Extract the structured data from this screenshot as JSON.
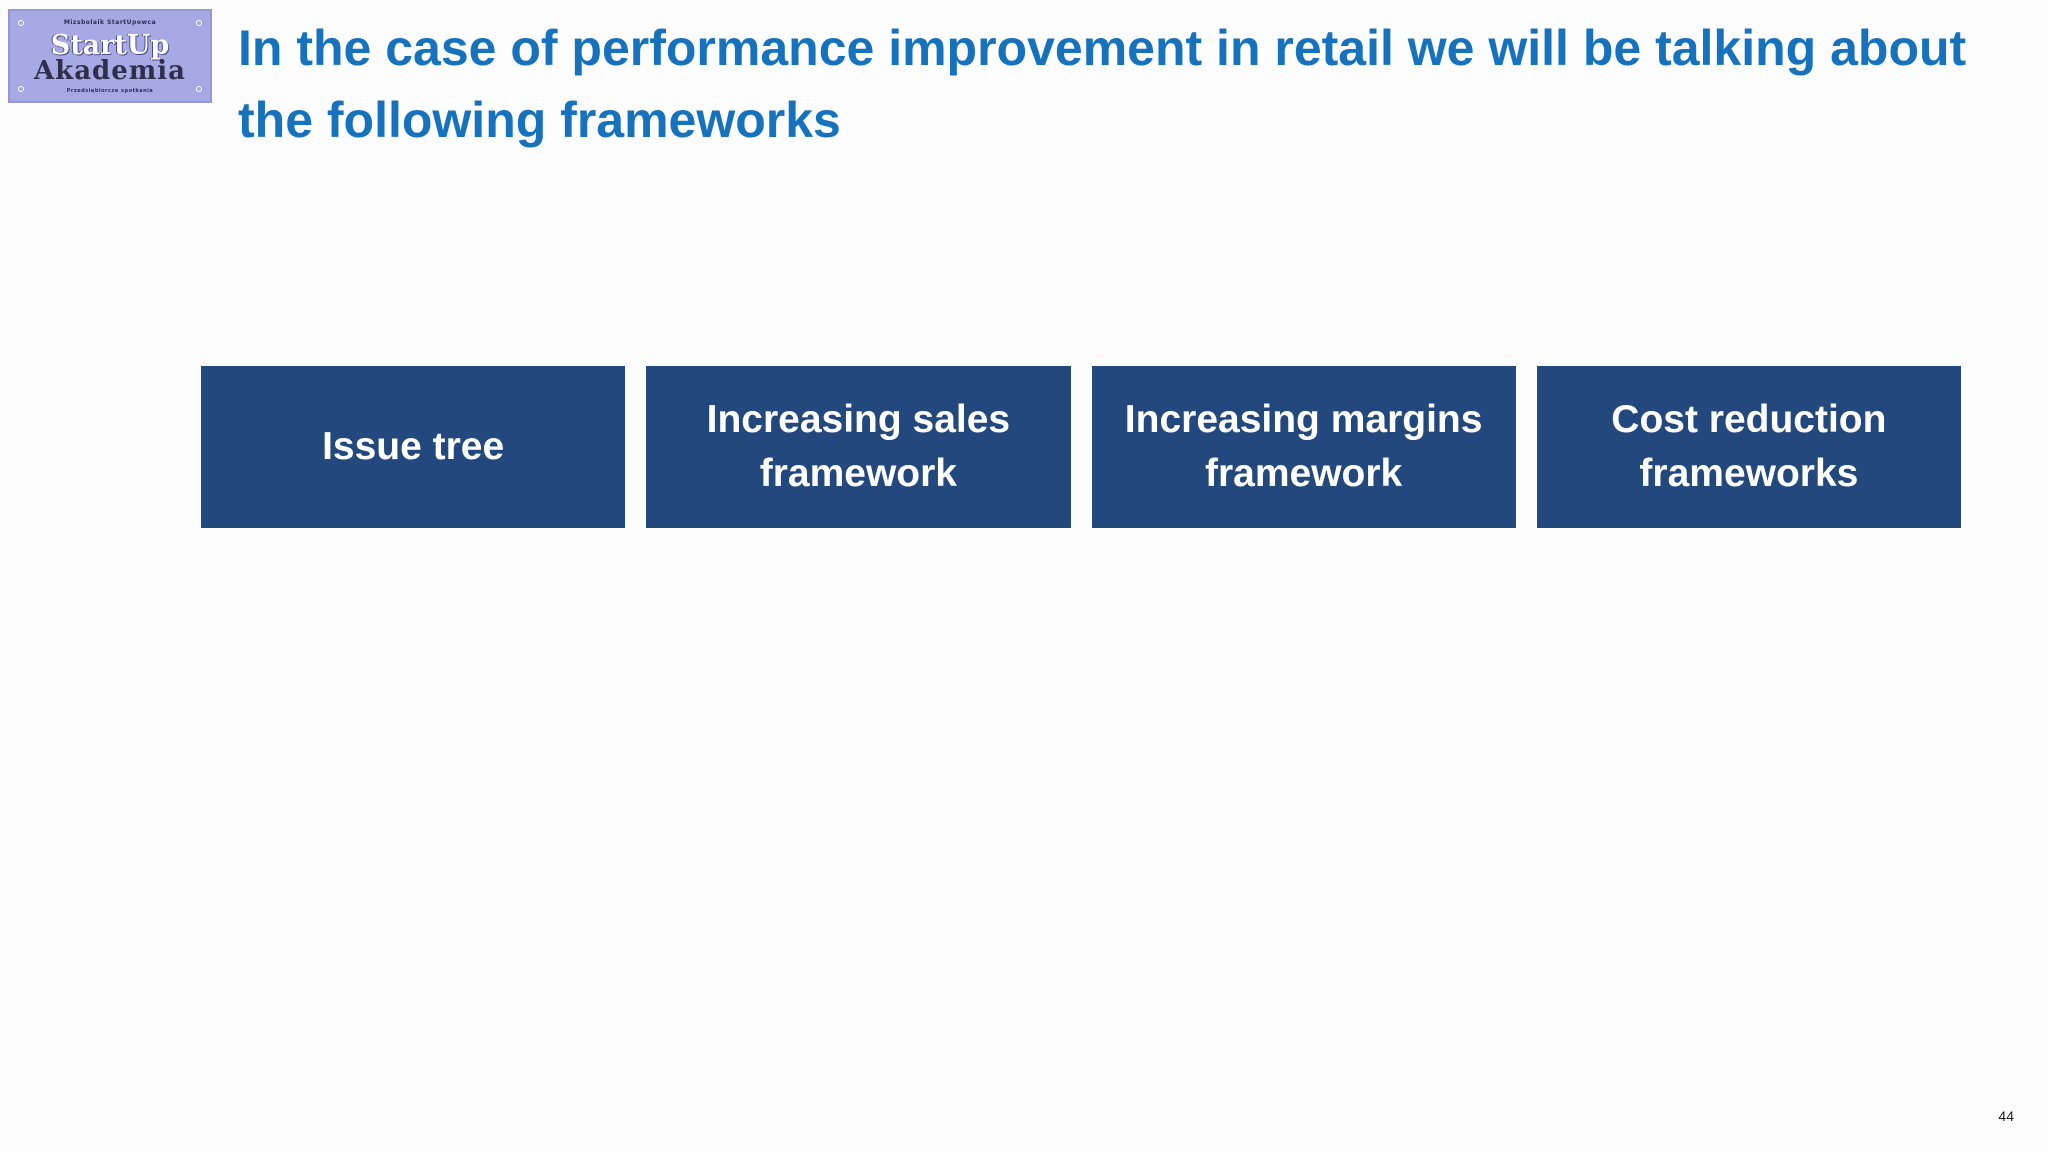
{
  "logo": {
    "top_text": "Mizsbolaik StartUpowca",
    "line1": "StartUp",
    "line2": "Akademia",
    "bottom_text": "Przedsiębiorcze spotkania"
  },
  "slide": {
    "title": "In the case of performance improvement in retail we will be talking about the following frameworks",
    "frameworks": [
      {
        "label": "Issue tree"
      },
      {
        "label": "Increasing sales framework"
      },
      {
        "label": "Increasing margins framework"
      },
      {
        "label": "Cost reduction frameworks"
      }
    ],
    "page_number": "44"
  },
  "colors": {
    "title": "#1772be",
    "box_background": "#22487d",
    "box_text": "#ffffff",
    "logo_background": "#a7a9e4"
  }
}
